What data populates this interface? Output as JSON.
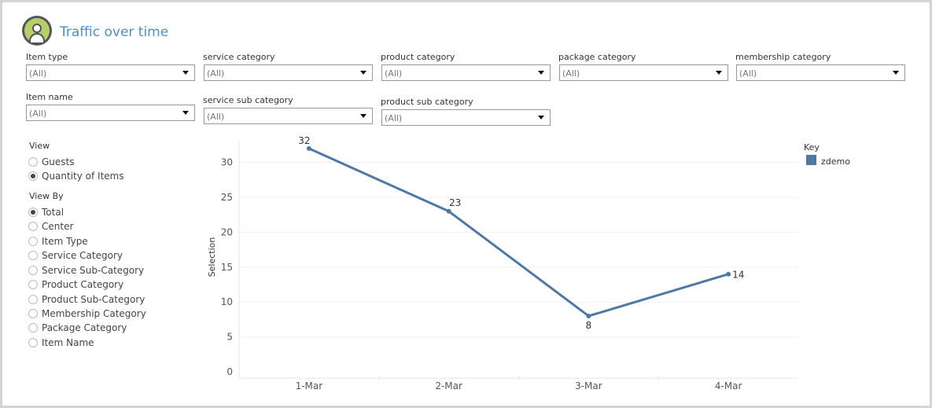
{
  "header": {
    "title": "Traffic over time",
    "logo_icon": "user-avatar-icon"
  },
  "filters": [
    {
      "label": "Item type",
      "value": "(All)"
    },
    {
      "label": "service category",
      "value": "(All)"
    },
    {
      "label": "product category",
      "value": "(All)"
    },
    {
      "label": "package category",
      "value": "(All)"
    },
    {
      "label": "membership category",
      "value": "(All)"
    },
    {
      "label": "Item name",
      "value": "(All)"
    },
    {
      "label": "service sub category",
      "value": "(All)"
    },
    {
      "label": "product sub category",
      "value": "(All)"
    }
  ],
  "view": {
    "title": "View",
    "options": [
      {
        "label": "Guests",
        "selected": false
      },
      {
        "label": "Quantity of Items",
        "selected": true
      }
    ]
  },
  "view_by": {
    "title": "View By",
    "options": [
      {
        "label": "Total",
        "selected": true
      },
      {
        "label": "Center",
        "selected": false
      },
      {
        "label": "Item Type",
        "selected": false
      },
      {
        "label": "Service Category",
        "selected": false
      },
      {
        "label": "Service Sub-Category",
        "selected": false
      },
      {
        "label": "Product Category",
        "selected": false
      },
      {
        "label": "Product Sub-Category",
        "selected": false
      },
      {
        "label": "Membership Category",
        "selected": false
      },
      {
        "label": "Package Category",
        "selected": false
      },
      {
        "label": "Item Name",
        "selected": false
      }
    ]
  },
  "legend": {
    "title": "Key",
    "items": [
      {
        "label": "zdemo",
        "color": "#4e79a7"
      }
    ]
  },
  "chart_data": {
    "type": "line",
    "title": "",
    "xlabel": "",
    "ylabel": "Selection",
    "categories": [
      "1-Mar",
      "2-Mar",
      "3-Mar",
      "4-Mar"
    ],
    "series": [
      {
        "name": "zdemo",
        "values": [
          32,
          23,
          8,
          14
        ],
        "color": "#4e79a7"
      }
    ],
    "data_labels": [
      "32",
      "23",
      "8",
      "14"
    ],
    "ylim": [
      0,
      33
    ],
    "yticks": [
      0,
      5,
      10,
      15,
      20,
      25,
      30
    ],
    "grid": true,
    "legend_position": "right"
  }
}
